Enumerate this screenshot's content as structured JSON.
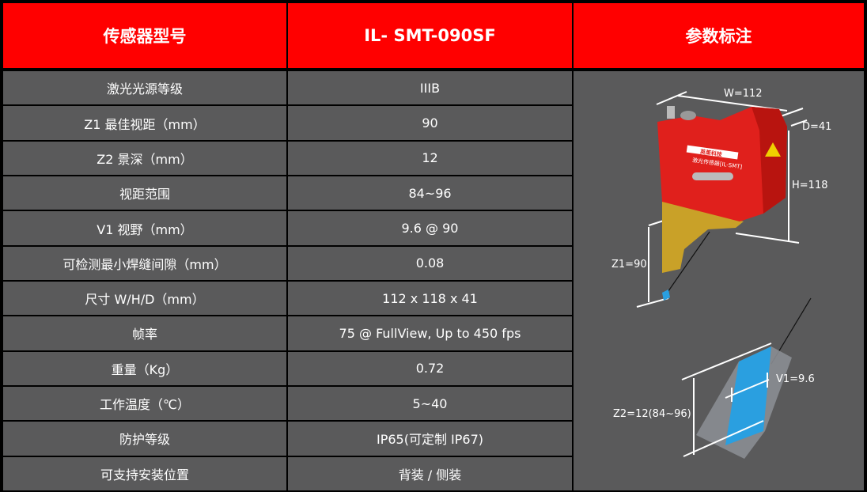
{
  "header": {
    "col1": "传感器型号",
    "col2": "IL- SMT-090SF",
    "col3": "参数标注"
  },
  "rows": [
    {
      "label": "激光光源等级",
      "value": "IIIB"
    },
    {
      "label": "Z1 最佳视距（mm）",
      "value": "90"
    },
    {
      "label": "Z2 景深（mm）",
      "value": "12"
    },
    {
      "label": "视距范围",
      "value": "84~96"
    },
    {
      "label": "V1 视野（mm）",
      "value": "9.6 @ 90"
    },
    {
      "label": "可检测最小焊缝间隙（mm）",
      "value": "0.08"
    },
    {
      "label": "尺寸 W/H/D（mm）",
      "value": "112 x 118 x 41"
    },
    {
      "label": "帧率",
      "value": "75 @ FullView, Up to 450 fps"
    },
    {
      "label": "重量（Kg）",
      "value": "0.72"
    },
    {
      "label": "工作温度（℃）",
      "value": "5~40"
    },
    {
      "label": "防护等级",
      "value": "IP65(可定制 IP67)"
    },
    {
      "label": "可支持安装位置",
      "value": "背装 / 侧装"
    }
  ],
  "diagram": {
    "w": "W=112",
    "d": "D=41",
    "h": "H=118",
    "z1": "Z1=90",
    "v1": "V1=9.6",
    "z2": "Z2=12(84~96)",
    "label_brand": "英莱科技",
    "label_product": "激光传感器[IL-SMT]"
  },
  "colors": {
    "header": "#ff0000",
    "cell": "#5a5a5b",
    "border": "#000000",
    "sensor": "#e0201c",
    "bracket": "#c9a128",
    "laser": "#2a9fe0"
  }
}
